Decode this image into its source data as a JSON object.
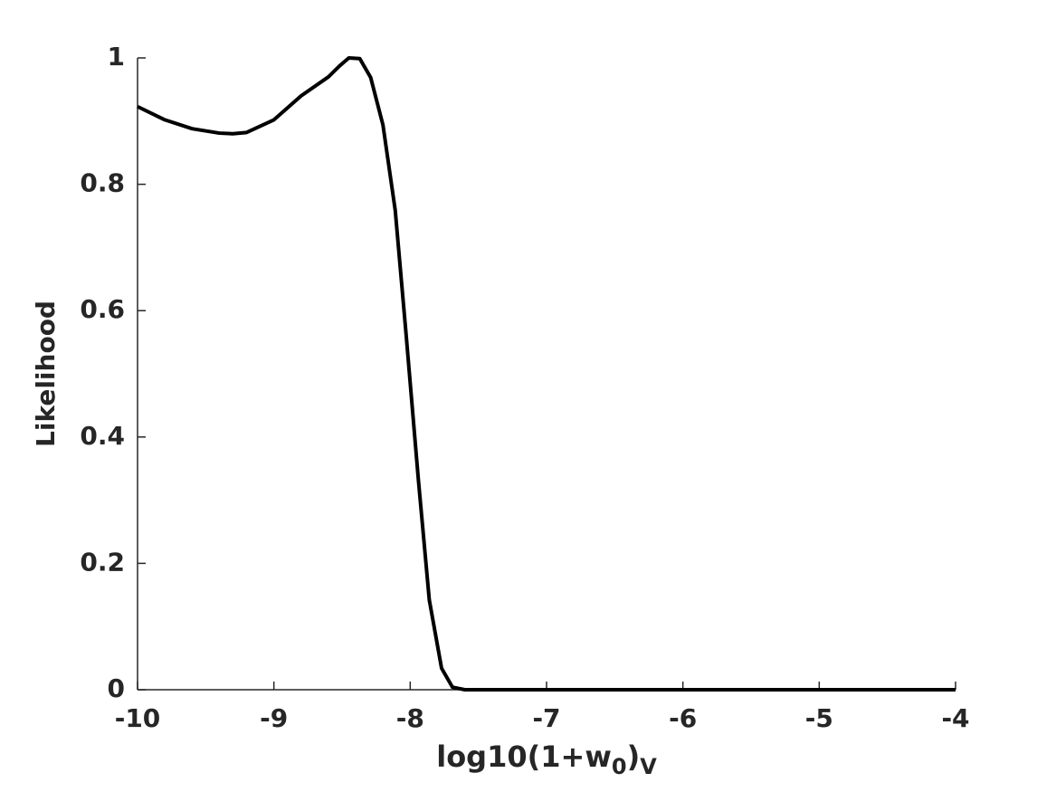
{
  "chart_data": {
    "type": "line",
    "xlabel": [
      "log10(1+w",
      "0",
      ")",
      "V"
    ],
    "ylabel": "Likelihood",
    "x": [
      -10,
      -9.8,
      -9.6,
      -9.4,
      -9.3,
      -9.2,
      -9.0,
      -8.8,
      -8.6,
      -8.52,
      -8.45,
      -8.37,
      -8.29,
      -8.2,
      -8.11,
      -8.03,
      -7.94,
      -7.86,
      -7.77,
      -7.69,
      -7.6,
      -7,
      -6,
      -5,
      -4
    ],
    "series": [
      {
        "color": "#000000",
        "values": [
          0.923,
          0.902,
          0.888,
          0.881,
          0.88,
          0.882,
          0.902,
          0.94,
          0.97,
          0.987,
          1.0,
          0.999,
          0.969,
          0.894,
          0.759,
          0.562,
          0.332,
          0.142,
          0.034,
          0.004,
          0,
          0,
          0,
          0,
          0
        ]
      }
    ],
    "xlim": [
      -10,
      -4
    ],
    "xticks": [
      -10,
      -9,
      -8,
      -7,
      -6,
      -5,
      -4
    ],
    "ylim": [
      0,
      1
    ],
    "yticks": [
      0,
      0.2,
      0.4,
      0.6,
      0.8,
      1
    ]
  }
}
